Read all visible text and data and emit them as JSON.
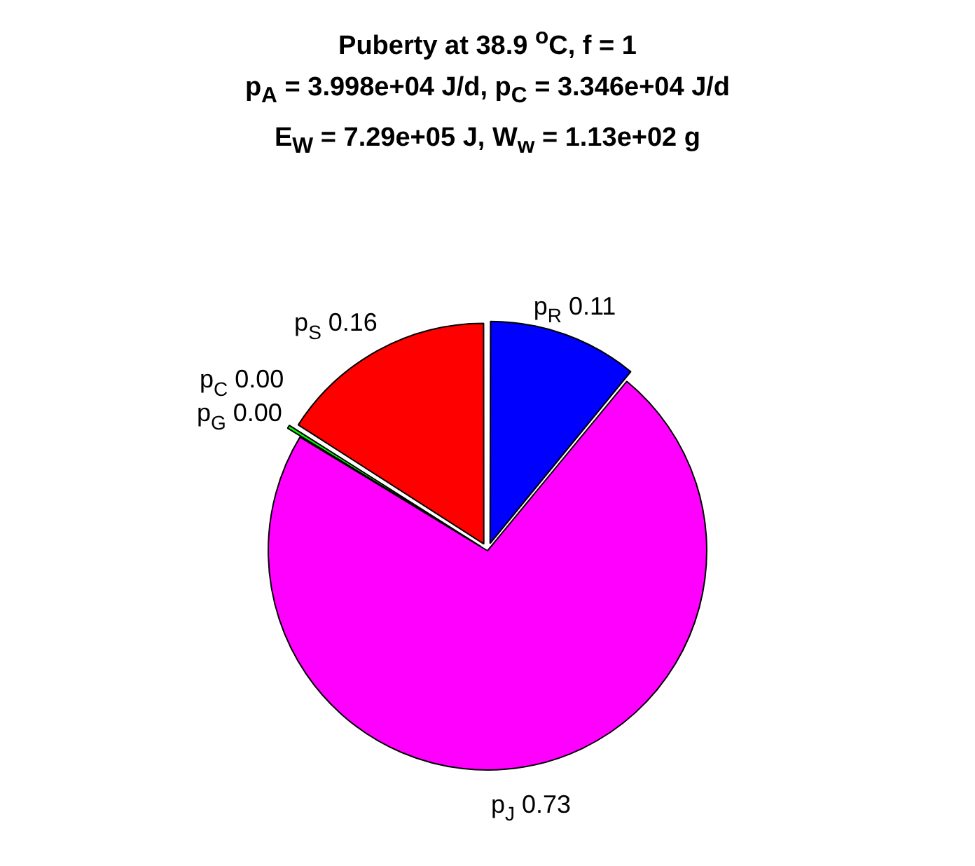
{
  "chart_data": {
    "type": "pie",
    "title": "Puberty at 38.9 $^{o}$C, f = 1",
    "subtitle": "p$_{A}$ = 3.998e+04 J/d,  p$_{C}$ = 3.346e+04 J/d\nE$_{W}$ = 7.29e+05 J, W$_{w}$ = 1.13e+02 g",
    "categories": [
      "p$_{R}$",
      "p$_{J}$",
      "p$_{G}$",
      "p$_{C}$",
      "p$_{S}$"
    ],
    "values": [
      0.11,
      0.73,
      0.004,
      0,
      0.16
    ],
    "value_labels": [
      "0.11",
      "0.73",
      "0.00",
      "0.00",
      "0.16"
    ],
    "colors": [
      "#0000ff",
      "#ff00ff",
      "#00ff00",
      "#000000",
      "#ff0000"
    ],
    "legend": false
  }
}
